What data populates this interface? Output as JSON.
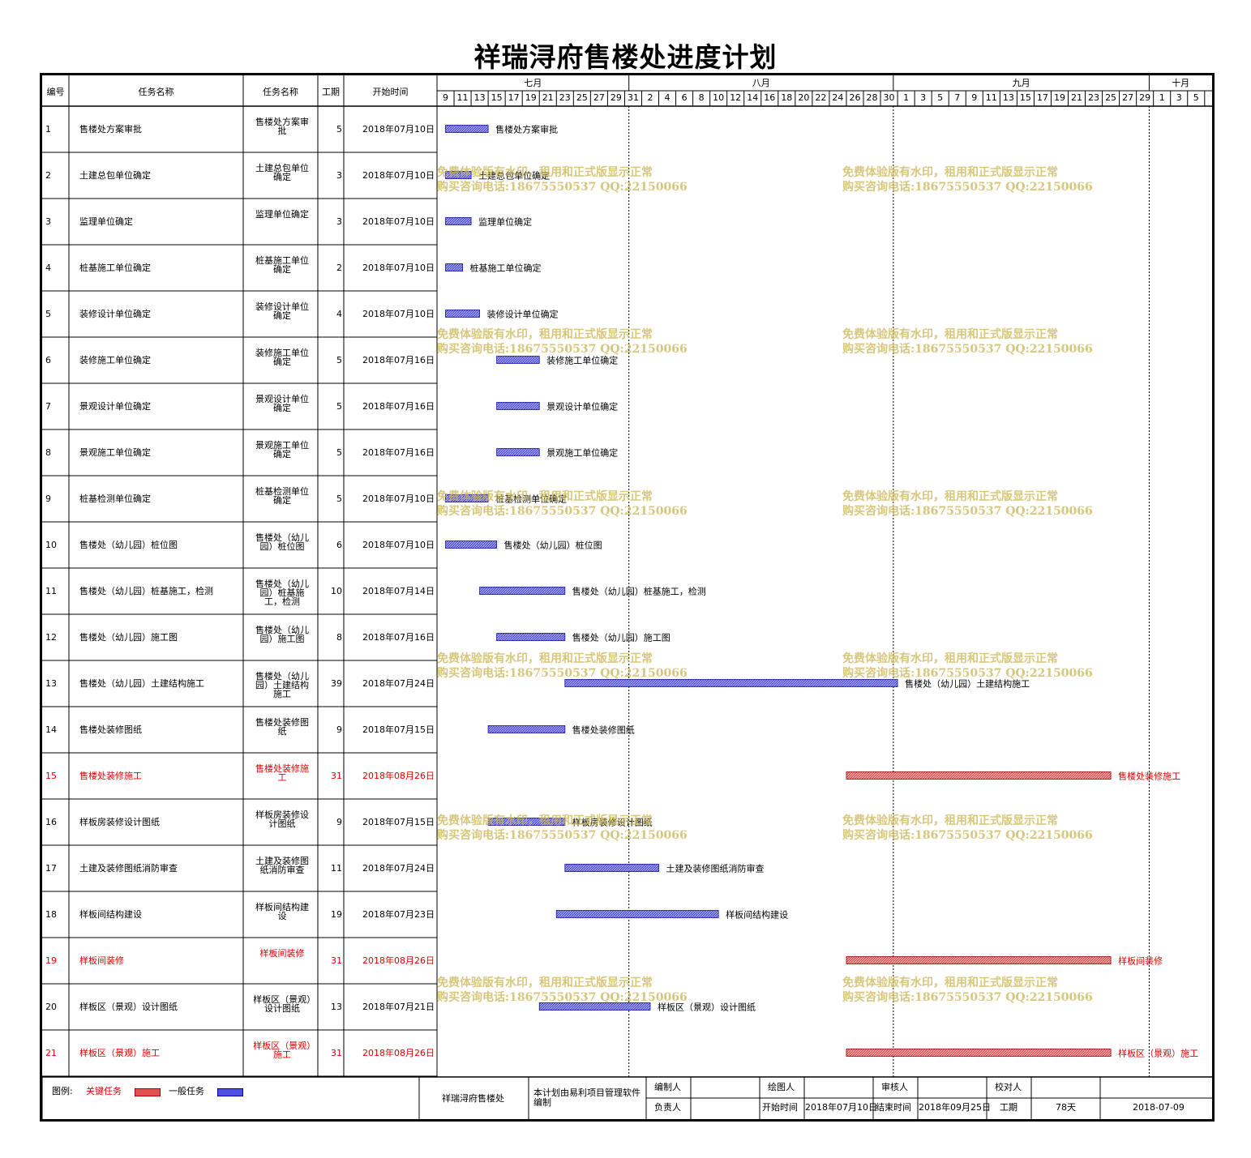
{
  "title": "祥瑞浔府售楼处进度计划",
  "columns": {
    "id": "编号",
    "name": "任务名称",
    "name2": "任务名称",
    "duration": "工期",
    "start": "开始时间"
  },
  "timeline": {
    "months": [
      {
        "label": "七月"
      },
      {
        "label": "八月"
      },
      {
        "label": "九月"
      },
      {
        "label": "十月"
      }
    ],
    "day_labels": [
      "9",
      "11",
      "13",
      "15",
      "17",
      "19",
      "21",
      "23",
      "25",
      "27",
      "29",
      "31",
      "2",
      "4",
      "6",
      "8",
      "10",
      "12",
      "14",
      "16",
      "18",
      "20",
      "22",
      "24",
      "26",
      "28",
      "30",
      "1",
      "3",
      "5",
      "7",
      "9",
      "11",
      "13",
      "15",
      "17",
      "19",
      "21",
      "23",
      "25",
      "27",
      "29",
      "1",
      "3",
      "5"
    ]
  },
  "colors": {
    "normal_bar": "#3a3ad4",
    "critical_bar": "#e04b4b",
    "critical_text": "#e00000",
    "watermark": "#d2be6e"
  },
  "watermark": {
    "line1": "免费体验版有水印，租用和正式版显示正常",
    "line2": "购买咨询电话:18675550537 QQ:22150066"
  },
  "chart_data": {
    "type": "gantt",
    "title": "祥瑞浔府售楼处进度计划",
    "x_axis": {
      "start": "2018-07-09",
      "end": "2018-10-06",
      "unit": "day"
    },
    "tasks": [
      {
        "id": "1",
        "name": "售楼处方案审批",
        "name2": "售楼处方案审批",
        "duration": 5,
        "start_label": "2018年07月10日",
        "start": "2018-07-10",
        "critical": false
      },
      {
        "id": "2",
        "name": "土建总包单位确定",
        "name2": "土建总包单位确定",
        "duration": 3,
        "start_label": "2018年07月10日",
        "start": "2018-07-10",
        "critical": false
      },
      {
        "id": "3",
        "name": "监理单位确定",
        "name2": "监理单位确定",
        "duration": 3,
        "start_label": "2018年07月10日",
        "start": "2018-07-10",
        "critical": false
      },
      {
        "id": "4",
        "name": "桩基施工单位确定",
        "name2": "桩基施工单位确定",
        "duration": 2,
        "start_label": "2018年07月10日",
        "start": "2018-07-10",
        "critical": false
      },
      {
        "id": "5",
        "name": "装修设计单位确定",
        "name2": "装修设计单位确定",
        "duration": 4,
        "start_label": "2018年07月10日",
        "start": "2018-07-10",
        "critical": false
      },
      {
        "id": "6",
        "name": "装修施工单位确定",
        "name2": "装修施工单位确定",
        "duration": 5,
        "start_label": "2018年07月16日",
        "start": "2018-07-16",
        "critical": false
      },
      {
        "id": "7",
        "name": "景观设计单位确定",
        "name2": "景观设计单位确定",
        "duration": 5,
        "start_label": "2018年07月16日",
        "start": "2018-07-16",
        "critical": false
      },
      {
        "id": "8",
        "name": "景观施工单位确定",
        "name2": "景观施工单位确定",
        "duration": 5,
        "start_label": "2018年07月16日",
        "start": "2018-07-16",
        "critical": false
      },
      {
        "id": "9",
        "name": "桩基检测单位确定",
        "name2": "桩基检测单位确定",
        "duration": 5,
        "start_label": "2018年07月10日",
        "start": "2018-07-10",
        "critical": false
      },
      {
        "id": "10",
        "name": "售楼处（幼儿园）桩位图",
        "name2": "售楼处（幼儿园）桩位图",
        "duration": 6,
        "start_label": "2018年07月10日",
        "start": "2018-07-10",
        "critical": false
      },
      {
        "id": "11",
        "name": "售楼处（幼儿园）桩基施工，检测",
        "name2": "售楼处（幼儿园）桩基施工，检测",
        "duration": 10,
        "start_label": "2018年07月14日",
        "start": "2018-07-14",
        "critical": false
      },
      {
        "id": "12",
        "name": "售楼处（幼儿园）施工图",
        "name2": "售楼处（幼儿园）施工图",
        "duration": 8,
        "start_label": "2018年07月16日",
        "start": "2018-07-16",
        "critical": false
      },
      {
        "id": "13",
        "name": "售楼处（幼儿园）土建结构施工",
        "name2": "售楼处（幼儿园）土建结构施工",
        "duration": 39,
        "start_label": "2018年07月24日",
        "start": "2018-07-24",
        "critical": false
      },
      {
        "id": "14",
        "name": "售楼处装修图纸",
        "name2": "售楼处装修图纸",
        "duration": 9,
        "start_label": "2018年07月15日",
        "start": "2018-07-15",
        "critical": false
      },
      {
        "id": "15",
        "name": "售楼处装修施工",
        "name2": "售楼处装修施工",
        "duration": 31,
        "start_label": "2018年08月26日",
        "start": "2018-08-26",
        "critical": true
      },
      {
        "id": "16",
        "name": "样板房装修设计图纸",
        "name2": "样板房装修设计图纸",
        "duration": 9,
        "start_label": "2018年07月15日",
        "start": "2018-07-15",
        "critical": false
      },
      {
        "id": "17",
        "name": "土建及装修图纸消防审查",
        "name2": "土建及装修图纸消防审查",
        "duration": 11,
        "start_label": "2018年07月24日",
        "start": "2018-07-24",
        "critical": false
      },
      {
        "id": "18",
        "name": "样板间结构建设",
        "name2": "样板间结构建设",
        "duration": 19,
        "start_label": "2018年07月23日",
        "start": "2018-07-23",
        "critical": false
      },
      {
        "id": "19",
        "name": "样板间装修",
        "name2": "样板间装修",
        "duration": 31,
        "start_label": "2018年08月26日",
        "start": "2018-08-26",
        "critical": true
      },
      {
        "id": "20",
        "name": "样板区（景观）设计图纸",
        "name2": "样板区（景观）设计图纸",
        "duration": 13,
        "start_label": "2018年07月21日",
        "start": "2018-07-21",
        "critical": false
      },
      {
        "id": "21",
        "name": "样板区（景观）施工",
        "name2": "样板区（景观）施工",
        "duration": 31,
        "start_label": "2018年08月26日",
        "start": "2018-08-26",
        "critical": true
      }
    ]
  },
  "footer": {
    "legend_label": "图例:",
    "critical_label": "关键任务",
    "normal_label": "一般任务",
    "project_name": "祥瑞浔府售楼处",
    "note": "本计划由易利项目管理软件编制",
    "editor_label": "编制人",
    "drawer_label": "绘图人",
    "reviewer_label": "审核人",
    "checker_label": "校对人",
    "owner_label": "负责人",
    "start_label": "开始时间",
    "start_value": "2018年07月10日",
    "end_label": "结束时间",
    "end_value": "2018年09月25日",
    "duration_label": "工期",
    "duration_value": "78天",
    "date_value": "2018-07-09"
  }
}
